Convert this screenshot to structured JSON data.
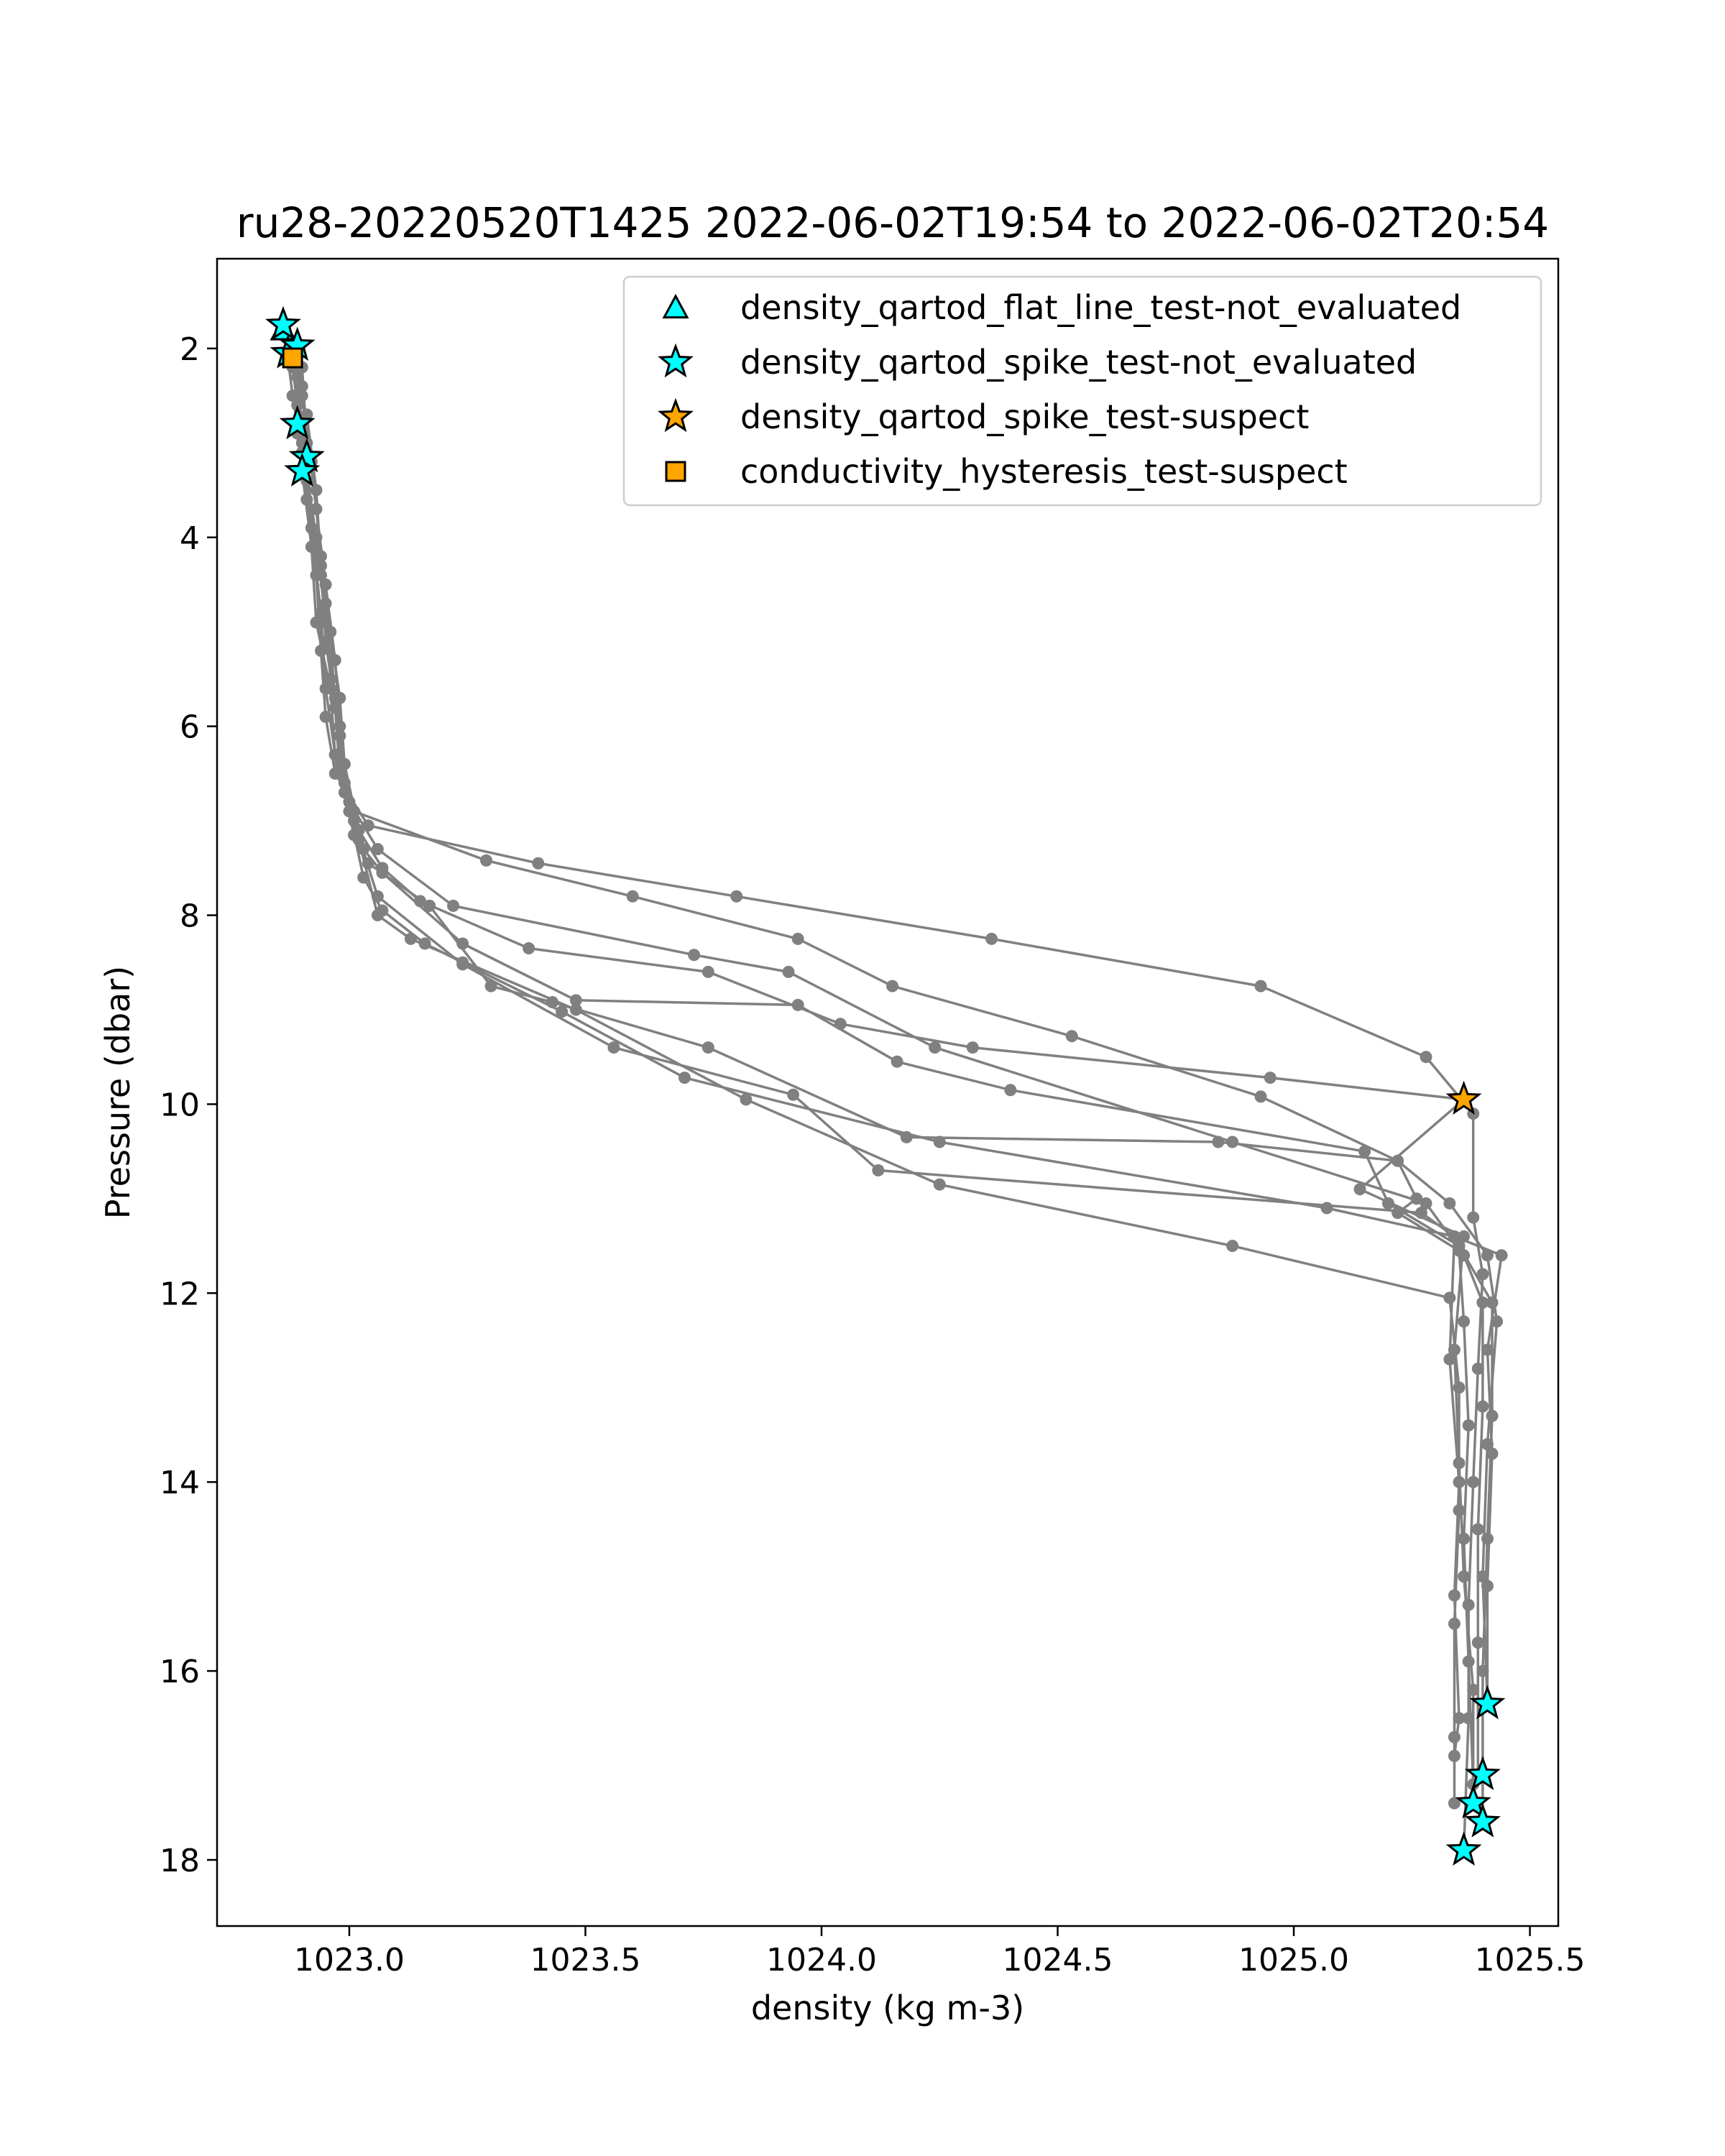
{
  "chart_data": {
    "type": "scatter",
    "title": "ru28-20220520T1425 2022-06-02T19:54 to 2022-06-02T20:54",
    "xlabel": "density (kg m-3)",
    "ylabel": "Pressure (dbar)",
    "xlim": [
      1022.72,
      1025.56
    ],
    "ylim": [
      18.7,
      1.05
    ],
    "y_inverted": true,
    "grid": false,
    "legend_position": "top-right",
    "x_ticks": [
      1023.0,
      1023.5,
      1024.0,
      1024.5,
      1025.0,
      1025.5
    ],
    "x_tick_labels": [
      "1023.0",
      "1023.5",
      "1024.0",
      "1024.5",
      "1025.0",
      "1025.5"
    ],
    "y_ticks": [
      2,
      4,
      6,
      8,
      10,
      12,
      14,
      16,
      18
    ],
    "y_tick_labels": [
      "2",
      "4",
      "6",
      "8",
      "10",
      "12",
      "14",
      "16",
      "18"
    ],
    "profile_color": "#808080",
    "profiles": [
      [
        [
          1022.86,
          1.75
        ],
        [
          1022.87,
          2.1
        ],
        [
          1022.88,
          2.5
        ],
        [
          1022.9,
          3.1
        ],
        [
          1022.91,
          3.6
        ],
        [
          1022.93,
          4.4
        ],
        [
          1022.94,
          5.2
        ],
        [
          1022.95,
          5.9
        ],
        [
          1022.97,
          6.5
        ],
        [
          1023.04,
          7.05
        ],
        [
          1023.4,
          7.45
        ],
        [
          1023.82,
          7.8
        ],
        [
          1024.36,
          8.25
        ],
        [
          1024.93,
          8.75
        ],
        [
          1025.28,
          9.5
        ],
        [
          1025.38,
          10.1
        ],
        [
          1025.38,
          11.2
        ],
        [
          1025.4,
          11.8
        ],
        [
          1025.39,
          12.8
        ],
        [
          1025.38,
          14.0
        ],
        [
          1025.37,
          15.3
        ],
        [
          1025.37,
          16.5
        ],
        [
          1025.36,
          17.9
        ]
      ],
      [
        [
          1022.88,
          2.0
        ],
        [
          1022.89,
          2.6
        ],
        [
          1022.9,
          3.3
        ],
        [
          1022.92,
          4.1
        ],
        [
          1022.93,
          4.9
        ],
        [
          1022.96,
          5.6
        ],
        [
          1022.97,
          6.3
        ],
        [
          1023.01,
          6.9
        ],
        [
          1023.29,
          7.42
        ],
        [
          1023.6,
          7.8
        ],
        [
          1023.95,
          8.25
        ],
        [
          1024.15,
          8.75
        ],
        [
          1024.53,
          9.28
        ],
        [
          1024.93,
          9.92
        ],
        [
          1025.22,
          10.6
        ],
        [
          1025.33,
          11.05
        ],
        [
          1025.41,
          11.6
        ],
        [
          1025.43,
          12.3
        ],
        [
          1025.41,
          13.6
        ],
        [
          1025.4,
          15.0
        ],
        [
          1025.41,
          16.35
        ]
      ],
      [
        [
          1022.9,
          2.2
        ],
        [
          1022.91,
          3.0
        ],
        [
          1022.92,
          3.9
        ],
        [
          1022.95,
          4.7
        ],
        [
          1022.96,
          5.5
        ],
        [
          1022.98,
          6.1
        ],
        [
          1023.0,
          6.8
        ],
        [
          1023.06,
          7.3
        ],
        [
          1023.22,
          7.9
        ],
        [
          1023.73,
          8.42
        ],
        [
          1023.93,
          8.6
        ],
        [
          1024.24,
          9.4
        ],
        [
          1024.87,
          10.4
        ],
        [
          1025.28,
          11.05
        ],
        [
          1025.36,
          11.6
        ],
        [
          1025.4,
          12.1
        ],
        [
          1025.4,
          13.2
        ],
        [
          1025.39,
          14.5
        ],
        [
          1025.39,
          15.7
        ],
        [
          1025.39,
          17.1
        ]
      ],
      [
        [
          1022.89,
          2.3
        ],
        [
          1022.91,
          3.4
        ],
        [
          1022.94,
          4.4
        ],
        [
          1022.96,
          5.0
        ],
        [
          1022.98,
          5.7
        ],
        [
          1022.99,
          6.4
        ],
        [
          1023.02,
          7.1
        ],
        [
          1023.07,
          7.5
        ],
        [
          1023.15,
          7.85
        ],
        [
          1023.38,
          8.35
        ],
        [
          1023.76,
          8.6
        ],
        [
          1024.04,
          9.15
        ],
        [
          1024.32,
          9.4
        ],
        [
          1024.95,
          9.72
        ],
        [
          1025.36,
          9.95
        ],
        [
          1025.14,
          10.9
        ],
        [
          1025.36,
          11.4
        ],
        [
          1025.34,
          12.6
        ],
        [
          1025.35,
          13.8
        ],
        [
          1025.36,
          15.0
        ],
        [
          1025.38,
          16.2
        ],
        [
          1025.38,
          17.4
        ]
      ],
      [
        [
          1022.9,
          2.5
        ],
        [
          1022.93,
          3.7
        ],
        [
          1022.95,
          4.5
        ],
        [
          1022.97,
          5.3
        ],
        [
          1022.98,
          6.0
        ],
        [
          1022.99,
          6.6
        ],
        [
          1023.03,
          7.3
        ],
        [
          1023.07,
          7.55
        ],
        [
          1023.24,
          8.3
        ],
        [
          1023.48,
          8.9
        ],
        [
          1023.95,
          8.95
        ],
        [
          1024.16,
          9.55
        ],
        [
          1024.4,
          9.85
        ],
        [
          1025.15,
          10.5
        ],
        [
          1025.2,
          11.05
        ],
        [
          1025.35,
          11.5
        ],
        [
          1025.42,
          12.1
        ],
        [
          1025.42,
          13.3
        ],
        [
          1025.41,
          14.6
        ],
        [
          1025.4,
          16.0
        ],
        [
          1025.4,
          17.6
        ]
      ],
      [
        [
          1022.91,
          2.7
        ],
        [
          1022.93,
          3.5
        ],
        [
          1022.94,
          4.3
        ],
        [
          1022.95,
          5.1
        ],
        [
          1022.97,
          5.8
        ],
        [
          1022.98,
          6.5
        ],
        [
          1023.01,
          7.15
        ],
        [
          1023.04,
          7.45
        ],
        [
          1023.17,
          7.9
        ],
        [
          1023.3,
          8.75
        ],
        [
          1023.43,
          8.92
        ],
        [
          1023.76,
          9.4
        ],
        [
          1024.18,
          10.35
        ],
        [
          1024.84,
          10.4
        ],
        [
          1025.22,
          10.6
        ],
        [
          1025.26,
          11.0
        ],
        [
          1025.22,
          11.15
        ],
        [
          1025.35,
          11.55
        ],
        [
          1025.36,
          12.3
        ],
        [
          1025.37,
          13.4
        ],
        [
          1025.36,
          14.6
        ],
        [
          1025.37,
          15.9
        ],
        [
          1025.38,
          17.2
        ]
      ],
      [
        [
          1022.89,
          2.9
        ],
        [
          1022.92,
          3.9
        ],
        [
          1022.94,
          4.8
        ],
        [
          1022.95,
          5.6
        ],
        [
          1022.97,
          6.3
        ],
        [
          1023.0,
          6.9
        ],
        [
          1023.03,
          7.6
        ],
        [
          1023.07,
          7.95
        ],
        [
          1023.16,
          8.3
        ],
        [
          1023.24,
          8.5
        ],
        [
          1023.45,
          9.02
        ],
        [
          1023.71,
          9.72
        ],
        [
          1024.25,
          10.4
        ],
        [
          1025.07,
          11.1
        ],
        [
          1025.34,
          11.4
        ],
        [
          1025.44,
          11.6
        ],
        [
          1025.41,
          12.6
        ],
        [
          1025.42,
          13.7
        ],
        [
          1025.41,
          15.1
        ],
        [
          1025.41,
          16.35
        ]
      ],
      [
        [
          1022.9,
          2.4
        ],
        [
          1022.92,
          3.2
        ],
        [
          1022.94,
          4.2
        ],
        [
          1022.96,
          5.0
        ],
        [
          1022.97,
          5.8
        ],
        [
          1022.98,
          6.4
        ],
        [
          1023.01,
          7.0
        ],
        [
          1023.06,
          7.8
        ],
        [
          1023.24,
          8.52
        ],
        [
          1023.56,
          9.4
        ],
        [
          1023.94,
          9.9
        ],
        [
          1024.12,
          10.7
        ],
        [
          1025.27,
          11.15
        ],
        [
          1025.34,
          11.4
        ],
        [
          1025.33,
          12.7
        ],
        [
          1025.35,
          14.0
        ],
        [
          1025.34,
          15.2
        ],
        [
          1025.35,
          16.5
        ],
        [
          1025.34,
          16.9
        ]
      ],
      [
        [
          1022.88,
          2.2
        ],
        [
          1022.9,
          3.0
        ],
        [
          1022.93,
          4.0
        ],
        [
          1022.95,
          4.9
        ],
        [
          1022.97,
          5.7
        ],
        [
          1022.99,
          6.7
        ],
        [
          1023.02,
          7.2
        ],
        [
          1023.06,
          8.0
        ],
        [
          1023.13,
          8.25
        ],
        [
          1023.48,
          9.0
        ],
        [
          1023.84,
          9.95
        ],
        [
          1024.25,
          10.85
        ],
        [
          1024.87,
          11.5
        ],
        [
          1025.33,
          12.05
        ],
        [
          1025.35,
          13.0
        ],
        [
          1025.35,
          14.3
        ],
        [
          1025.34,
          15.5
        ],
        [
          1025.34,
          16.7
        ],
        [
          1025.34,
          17.4
        ]
      ]
    ],
    "flag_series": [
      {
        "name": "density_qartod_flat_line_test-not_evaluated",
        "marker": "triangle",
        "color": "#00ffff",
        "points": [
          [
            1022.86,
            1.8
          ]
        ]
      },
      {
        "name": "density_qartod_spike_test-not_evaluated",
        "marker": "star",
        "color": "#00ffff",
        "points": [
          [
            1022.86,
            1.75
          ],
          [
            1022.87,
            2.05
          ],
          [
            1022.89,
            1.97
          ],
          [
            1022.89,
            2.8
          ],
          [
            1022.91,
            3.15
          ],
          [
            1022.9,
            3.3
          ],
          [
            1025.41,
            16.35
          ],
          [
            1025.4,
            17.1
          ],
          [
            1025.38,
            17.4
          ],
          [
            1025.4,
            17.6
          ],
          [
            1025.36,
            17.9
          ]
        ]
      },
      {
        "name": "density_qartod_spike_test-suspect",
        "marker": "star",
        "color": "#ffa500",
        "points": [
          [
            1025.36,
            9.95
          ]
        ]
      },
      {
        "name": "conductivity_hysteresis_test-suspect",
        "marker": "square",
        "color": "#ffa500",
        "points": [
          [
            1022.88,
            2.1
          ]
        ]
      }
    ]
  }
}
